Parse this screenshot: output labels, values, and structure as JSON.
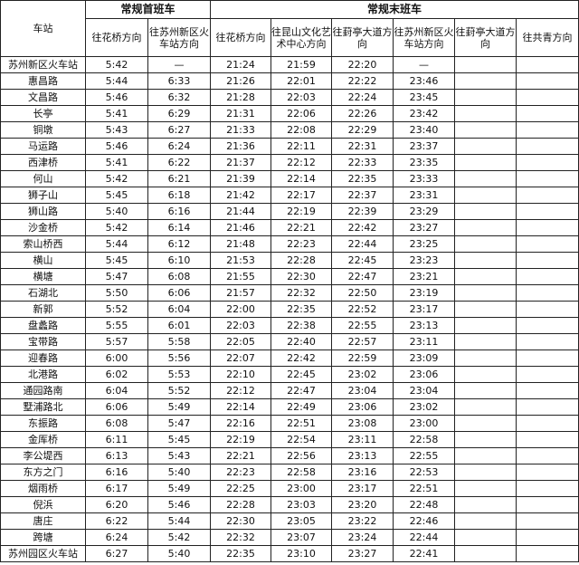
{
  "header": {
    "station": "车站",
    "group_first": "常规首班车",
    "group_last": "常规末班车",
    "first_cols": [
      "往花桥方向",
      "往苏州新区火车站方向"
    ],
    "last_cols": [
      "往花桥方向",
      "往昆山文化艺术中心方向",
      "往葑亭大道方向",
      "往苏州新区火车站方向",
      "往葑亭大道方向",
      "往共青方向"
    ]
  },
  "rows": [
    [
      "苏州新区火车站",
      "5:42",
      "—",
      "21:24",
      "21:59",
      "22:20",
      "—",
      "",
      ""
    ],
    [
      "惠昌路",
      "5:44",
      "6:33",
      "21:26",
      "22:01",
      "22:22",
      "23:46",
      "",
      ""
    ],
    [
      "文昌路",
      "5:46",
      "6:32",
      "21:28",
      "22:03",
      "22:24",
      "23:45",
      "",
      ""
    ],
    [
      "长亭",
      "5:41",
      "6:29",
      "21:31",
      "22:06",
      "22:26",
      "23:42",
      "",
      ""
    ],
    [
      "铜墩",
      "5:43",
      "6:27",
      "21:33",
      "22:08",
      "22:29",
      "23:40",
      "",
      ""
    ],
    [
      "马运路",
      "5:46",
      "6:24",
      "21:36",
      "22:11",
      "22:31",
      "23:37",
      "",
      ""
    ],
    [
      "西津桥",
      "5:41",
      "6:22",
      "21:37",
      "22:12",
      "22:33",
      "23:35",
      "",
      ""
    ],
    [
      "何山",
      "5:42",
      "6:21",
      "21:39",
      "22:14",
      "22:35",
      "23:33",
      "",
      ""
    ],
    [
      "狮子山",
      "5:45",
      "6:18",
      "21:42",
      "22:17",
      "22:37",
      "23:31",
      "",
      ""
    ],
    [
      "狮山路",
      "5:40",
      "6:16",
      "21:44",
      "22:19",
      "22:39",
      "23:29",
      "",
      ""
    ],
    [
      "沙金桥",
      "5:42",
      "6:14",
      "21:46",
      "22:21",
      "22:42",
      "23:27",
      "",
      ""
    ],
    [
      "索山桥西",
      "5:44",
      "6:12",
      "21:48",
      "22:23",
      "22:44",
      "23:25",
      "",
      ""
    ],
    [
      "横山",
      "5:45",
      "6:10",
      "21:53",
      "22:28",
      "22:45",
      "23:23",
      "",
      ""
    ],
    [
      "横塘",
      "5:47",
      "6:08",
      "21:55",
      "22:30",
      "22:47",
      "23:21",
      "",
      ""
    ],
    [
      "石湖北",
      "5:50",
      "6:06",
      "21:57",
      "22:32",
      "22:50",
      "23:19",
      "",
      ""
    ],
    [
      "新郭",
      "5:52",
      "6:04",
      "22:00",
      "22:35",
      "22:52",
      "23:17",
      "",
      ""
    ],
    [
      "盘蠡路",
      "5:55",
      "6:01",
      "22:03",
      "22:38",
      "22:55",
      "23:13",
      "",
      ""
    ],
    [
      "宝带路",
      "5:57",
      "5:58",
      "22:05",
      "22:40",
      "22:57",
      "23:11",
      "",
      ""
    ],
    [
      "迎春路",
      "6:00",
      "5:56",
      "22:07",
      "22:42",
      "22:59",
      "23:09",
      "",
      ""
    ],
    [
      "北港路",
      "6:02",
      "5:53",
      "22:10",
      "22:45",
      "23:02",
      "23:06",
      "",
      ""
    ],
    [
      "通园路南",
      "6:04",
      "5:52",
      "22:12",
      "22:47",
      "23:04",
      "23:04",
      "",
      ""
    ],
    [
      "墅浦路北",
      "6:06",
      "5:49",
      "22:14",
      "22:49",
      "23:06",
      "23:02",
      "",
      ""
    ],
    [
      "东振路",
      "6:08",
      "5:47",
      "22:16",
      "22:51",
      "23:08",
      "23:00",
      "",
      ""
    ],
    [
      "金厍桥",
      "6:11",
      "5:45",
      "22:19",
      "22:54",
      "23:11",
      "22:58",
      "",
      ""
    ],
    [
      "李公堤西",
      "6:13",
      "5:43",
      "22:21",
      "22:56",
      "23:13",
      "22:55",
      "",
      ""
    ],
    [
      "东方之门",
      "6:16",
      "5:40",
      "22:23",
      "22:58",
      "23:16",
      "22:53",
      "",
      ""
    ],
    [
      "烟雨桥",
      "6:17",
      "5:49",
      "22:25",
      "23:00",
      "23:17",
      "22:51",
      "",
      ""
    ],
    [
      "倪浜",
      "6:20",
      "5:46",
      "22:28",
      "23:03",
      "23:20",
      "22:48",
      "",
      ""
    ],
    [
      "唐庄",
      "6:22",
      "5:44",
      "22:30",
      "23:05",
      "23:22",
      "22:46",
      "",
      ""
    ],
    [
      "跨塘",
      "6:24",
      "5:42",
      "22:32",
      "23:07",
      "23:24",
      "22:44",
      "",
      ""
    ],
    [
      "苏州园区火车站",
      "6:27",
      "5:40",
      "22:35",
      "23:10",
      "23:27",
      "22:41",
      "",
      ""
    ]
  ]
}
